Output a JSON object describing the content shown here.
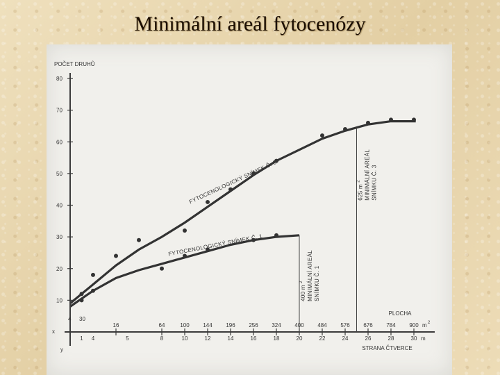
{
  "slide": {
    "title": "Minimální areál fytocenózy"
  },
  "chart_data": {
    "type": "scatter",
    "title": "",
    "ylabel": "POČET DRUHŮ",
    "xlabel_area": "PLOCHA",
    "xlabel_side": "STRANA ČTVERCE",
    "ylim": [
      0,
      80
    ],
    "y_ticks": [
      10,
      20,
      30,
      40,
      50,
      60,
      70,
      80
    ],
    "area_unit": "m",
    "area_unit_sup": "2",
    "side_unit": "m",
    "area_ticks_top": [
      "4",
      "30"
    ],
    "area_ticks": [
      {
        "x": 16,
        "label": "16"
      },
      {
        "x": 64,
        "label": "64"
      },
      {
        "x": 100,
        "label": "100"
      },
      {
        "x": 144,
        "label": "144"
      },
      {
        "x": 196,
        "label": "196"
      },
      {
        "x": 256,
        "label": "256"
      },
      {
        "x": 324,
        "label": "324"
      },
      {
        "x": 400,
        "label": "400"
      },
      {
        "x": 484,
        "label": "484"
      },
      {
        "x": 576,
        "label": "576"
      },
      {
        "x": 676,
        "label": "676"
      },
      {
        "x": 784,
        "label": "784"
      },
      {
        "x": 900,
        "label": "900"
      }
    ],
    "side_ticks": [
      {
        "x": 1,
        "label": "1"
      },
      {
        "x": 4,
        "label": "4"
      },
      {
        "x": 25,
        "label": "5"
      },
      {
        "x": 64,
        "label": "8"
      },
      {
        "x": 100,
        "label": "10"
      },
      {
        "x": 144,
        "label": "12"
      },
      {
        "x": 196,
        "label": "14"
      },
      {
        "x": 256,
        "label": "16"
      },
      {
        "x": 324,
        "label": "18"
      },
      {
        "x": 400,
        "label": "20"
      },
      {
        "x": 484,
        "label": "22"
      },
      {
        "x": 576,
        "label": "24"
      },
      {
        "x": 676,
        "label": "26"
      },
      {
        "x": 784,
        "label": "28"
      },
      {
        "x": 900,
        "label": "30"
      }
    ],
    "axis_marks": {
      "x_axis": "x",
      "y_axis": "y"
    },
    "series": [
      {
        "name": "FYTOCENOLOGICKÝ SNÍMEK Č. 3",
        "points": [
          [
            1,
            12
          ],
          [
            4,
            18
          ],
          [
            16,
            24
          ],
          [
            36,
            29
          ],
          [
            100,
            32
          ],
          [
            144,
            41
          ],
          [
            196,
            45
          ],
          [
            256,
            50
          ],
          [
            324,
            54
          ],
          [
            484,
            62
          ],
          [
            576,
            64
          ],
          [
            676,
            66
          ],
          [
            784,
            67
          ],
          [
            900,
            67
          ]
        ],
        "curve": [
          [
            0,
            9
          ],
          [
            4,
            15
          ],
          [
            16,
            21
          ],
          [
            36,
            26
          ],
          [
            64,
            30
          ],
          [
            100,
            34.5
          ],
          [
            144,
            39.5
          ],
          [
            196,
            44.5
          ],
          [
            256,
            49.5
          ],
          [
            324,
            54
          ],
          [
            400,
            57.5
          ],
          [
            484,
            61
          ],
          [
            576,
            63.5
          ],
          [
            625,
            64.5
          ],
          [
            676,
            65.5
          ],
          [
            784,
            66.5
          ],
          [
            910,
            66.5
          ]
        ]
      },
      {
        "name": "FYTOCENOLOGICKÝ SNÍMEK Č. 1",
        "points": [
          [
            1,
            10
          ],
          [
            4,
            13
          ],
          [
            64,
            20
          ],
          [
            100,
            24
          ],
          [
            144,
            26
          ],
          [
            256,
            29
          ],
          [
            324,
            30.5
          ]
        ],
        "curve": [
          [
            0,
            8
          ],
          [
            4,
            13
          ],
          [
            16,
            17
          ],
          [
            36,
            19.5
          ],
          [
            64,
            21.5
          ],
          [
            100,
            23.5
          ],
          [
            144,
            25.5
          ],
          [
            196,
            27.5
          ],
          [
            256,
            29
          ],
          [
            324,
            30
          ],
          [
            400,
            30.5
          ]
        ]
      }
    ],
    "annotations": [
      {
        "lines": [
          "400 m",
          "MINIMÁLNÍ  AREÁL",
          "SNÍMKU  Č. 1"
        ],
        "sup": "2",
        "x": 400,
        "y": 30.5
      },
      {
        "lines": [
          "625 m",
          "MINIMÁLNÍ  AREÁL",
          "SNÍMKU  Č. 3"
        ],
        "sup": "2",
        "x": 625,
        "y": 64.5
      }
    ]
  }
}
